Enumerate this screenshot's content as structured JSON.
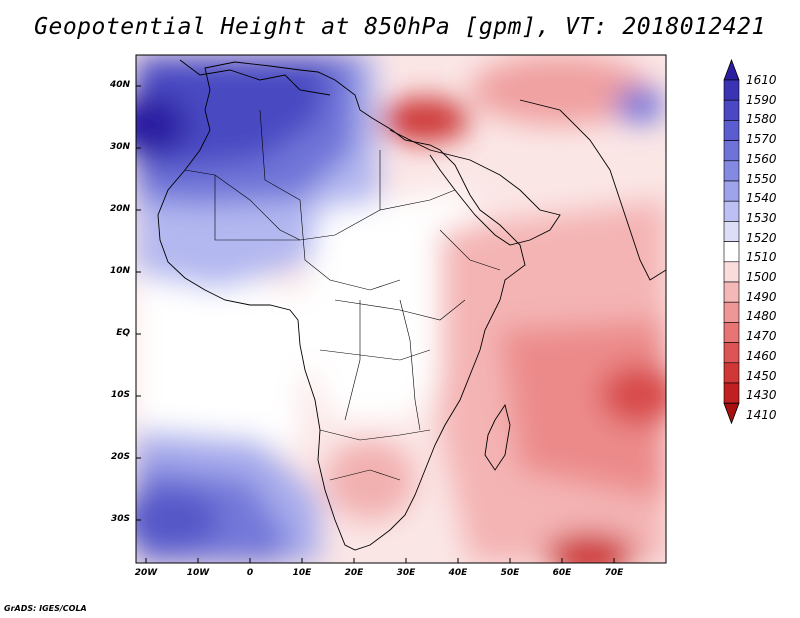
{
  "title": "Geopotential Height at 850hPa [gpm], VT: 2018012421",
  "credit": "GrADS: IGES/COLA",
  "latitude_labels": [
    "40N",
    "30N",
    "20N",
    "10N",
    "EQ",
    "10S",
    "20S",
    "30S"
  ],
  "longitude_labels": [
    "20W",
    "10W",
    "0",
    "10E",
    "20E",
    "30E",
    "40E",
    "50E",
    "60E",
    "70E"
  ],
  "colorbar": {
    "levels": [
      "1610",
      "1590",
      "1580",
      "1570",
      "1560",
      "1550",
      "1540",
      "1530",
      "1520",
      "1510",
      "1500",
      "1490",
      "1480",
      "1470",
      "1460",
      "1450",
      "1430",
      "1410"
    ],
    "colors": [
      "#2b1fa0",
      "#3a33b3",
      "#4a48c2",
      "#5b5ccf",
      "#6e72d9",
      "#8489e2",
      "#9ea3ea",
      "#bcc0f2",
      "#dcdef8",
      "#ffffff",
      "#fbdcdc",
      "#f5b8b8",
      "#ef9797",
      "#e77575",
      "#dc5454",
      "#d03838",
      "#c02020",
      "#a81010"
    ]
  },
  "icons": {
    "colorbar_top": "up-triangle",
    "colorbar_bottom": "down-triangle"
  }
}
